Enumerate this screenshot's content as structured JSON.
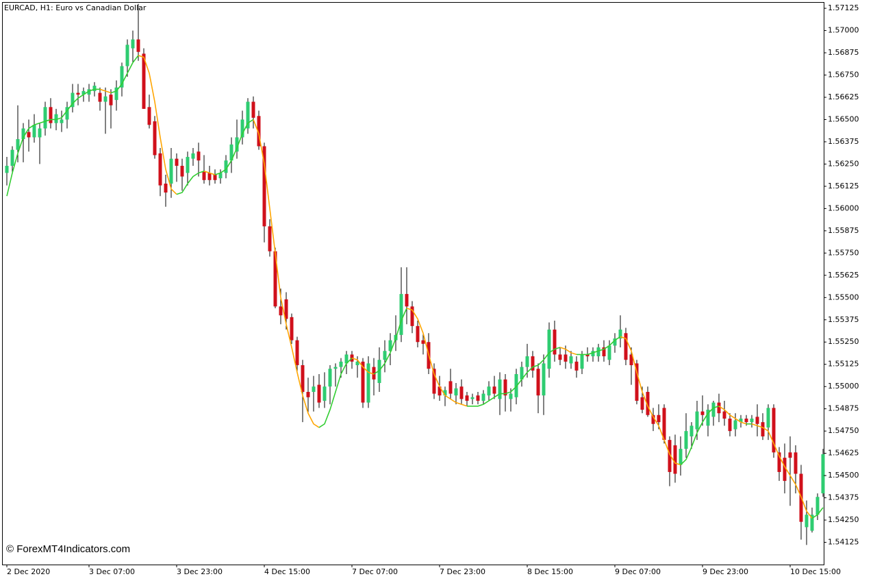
{
  "chart_data": {
    "type": "candlestick",
    "title": "EURCAD, H1:  Euro vs Canadian Dollar",
    "watermark": "© ForexMT4Indicators.com",
    "categories": [
      "2 Dec 2020",
      null,
      null,
      null,
      null,
      null,
      null,
      null,
      null,
      null,
      null,
      null,
      null,
      null,
      null,
      "3 Dec 07:00",
      null,
      null,
      null,
      null,
      null,
      null,
      null,
      null,
      null,
      null,
      null,
      null,
      null,
      null,
      null,
      "3 Dec 23:00",
      null,
      null,
      null,
      null,
      null,
      null,
      null,
      null,
      null,
      null,
      null,
      null,
      null,
      null,
      null,
      "4 Dec 15:00",
      null,
      null,
      null,
      null,
      null,
      null,
      null,
      null,
      null,
      null,
      null,
      null,
      null,
      null,
      null,
      "7 Dec 07:00",
      null,
      null,
      null,
      null,
      null,
      null,
      null,
      null,
      null,
      null,
      null,
      null,
      null,
      null,
      null,
      "7 Dec 23:00",
      null,
      null,
      null,
      null,
      null,
      null,
      null,
      null,
      null,
      null,
      null,
      null,
      null,
      null,
      null,
      "8 Dec 15:00",
      null,
      null,
      null,
      null,
      null,
      null,
      null,
      null,
      null,
      null,
      null,
      null,
      null,
      null,
      null,
      "9 Dec 07:00",
      null,
      null,
      null,
      null,
      null,
      null,
      null,
      null,
      null,
      null,
      null,
      null,
      null,
      null,
      null,
      "9 Dec 23:00",
      null,
      null,
      null,
      null,
      null,
      null,
      null,
      null,
      null,
      null,
      null,
      null,
      null,
      null,
      null,
      "10 Dec 15:00",
      null,
      null,
      null,
      null,
      null,
      null
    ],
    "open": [
      1.562,
      1.5624,
      1.5633,
      1.5639,
      1.5643,
      1.564,
      1.564,
      1.5645,
      1.5657,
      1.5648,
      1.5648,
      1.565,
      1.5657,
      1.5665,
      1.5664,
      1.5664,
      1.5666,
      1.5665,
      1.566,
      1.5664,
      1.5661,
      1.5668,
      1.568,
      1.569,
      1.5695,
      1.5687,
      1.5657,
      1.5649,
      1.5631,
      1.5614,
      1.5614,
      1.5628,
      1.5624,
      1.562,
      1.5628,
      1.5632,
      1.5621,
      1.562,
      1.5619,
      1.5617,
      1.562,
      1.5627,
      1.5632,
      1.564,
      1.5645,
      1.566,
      1.5652,
      1.5635,
      1.559,
      1.5576,
      1.5545,
      1.5549,
      1.5539,
      1.5526,
      1.5512,
      1.5497,
      1.5497,
      1.5501,
      1.5492,
      1.55,
      1.551,
      1.5511,
      1.5513,
      1.5518,
      1.5512,
      1.5514,
      1.5491,
      1.5511,
      1.5502,
      1.5515,
      1.552,
      1.5526,
      1.5529,
      1.5552,
      1.5545,
      1.5534,
      1.5526,
      1.5525,
      1.551,
      1.55,
      1.5495,
      1.5503,
      1.5495,
      1.55,
      1.5495,
      1.5493,
      1.5495,
      1.5492,
      1.5495,
      1.55,
      1.5493,
      1.5504,
      1.5493,
      1.5494,
      1.5504,
      1.5511,
      1.5517,
      1.551,
      1.5495,
      1.551,
      1.5532,
      1.5518,
      1.5518,
      1.5513,
      1.5514,
      1.551,
      1.5518,
      1.5517,
      1.5517,
      1.5522,
      1.5515,
      1.5523,
      1.5527,
      1.553,
      1.5518,
      1.5513,
      1.5494,
      1.5497,
      1.5484,
      1.5484,
      1.5488,
      1.547,
      1.5467,
      1.5456,
      1.5465,
      1.5472,
      1.5476,
      1.5486,
      1.5478,
      1.5483,
      1.5491,
      1.5486,
      1.5482,
      1.5476,
      1.548,
      1.5482,
      1.548,
      1.5483,
      1.548,
      1.5477,
      1.5488,
      1.5463,
      1.546,
      1.5463,
      1.5463,
      1.5451,
      1.5421,
      1.5419,
      1.5428,
      1.544
    ],
    "high": [
      1.5629,
      1.5635,
      1.5658,
      1.5648,
      1.565,
      1.5653,
      1.5648,
      1.566,
      1.5662,
      1.5656,
      1.5655,
      1.566,
      1.567,
      1.567,
      1.5668,
      1.567,
      1.5671,
      1.5668,
      1.5668,
      1.5667,
      1.5672,
      1.5682,
      1.5695,
      1.57,
      1.5715,
      1.569,
      1.5664,
      1.5652,
      1.5634,
      1.5619,
      1.5634,
      1.5631,
      1.5628,
      1.5632,
      1.5634,
      1.5637,
      1.563,
      1.5624,
      1.5622,
      1.5622,
      1.563,
      1.564,
      1.565,
      1.5655,
      1.5662,
      1.5663,
      1.5655,
      1.5637,
      1.5594,
      1.5578,
      1.5555,
      1.5553,
      1.5541,
      1.5528,
      1.5515,
      1.5505,
      1.5506,
      1.5507,
      1.5508,
      1.5512,
      1.5513,
      1.5516,
      1.552,
      1.552,
      1.5517,
      1.5516,
      1.5517,
      1.5516,
      1.5522,
      1.5526,
      1.553,
      1.554,
      1.5567,
      1.5567,
      1.5548,
      1.5537,
      1.553,
      1.553,
      1.5513,
      1.5506,
      1.55,
      1.551,
      1.5502,
      1.5504,
      1.5497,
      1.5496,
      1.5497,
      1.5498,
      1.5503,
      1.5506,
      1.5508,
      1.5507,
      1.5499,
      1.551,
      1.5514,
      1.5524,
      1.552,
      1.5513,
      1.5518,
      1.5536,
      1.5537,
      1.5522,
      1.5523,
      1.552,
      1.5517,
      1.552,
      1.5522,
      1.5522,
      1.5524,
      1.5526,
      1.5526,
      1.553,
      1.554,
      1.5533,
      1.5522,
      1.5515,
      1.55,
      1.55,
      1.5488,
      1.549,
      1.549,
      1.5472,
      1.5473,
      1.5472,
      1.5485,
      1.548,
      1.5492,
      1.5495,
      1.549,
      1.5492,
      1.5496,
      1.5492,
      1.5485,
      1.5485,
      1.5484,
      1.5484,
      1.5484,
      1.549,
      1.5485,
      1.549,
      1.549,
      1.5466,
      1.5468,
      1.5472,
      1.5467,
      1.5456,
      1.5436,
      1.5432,
      1.544,
      1.5465
    ],
    "low": [
      1.5613,
      1.562,
      1.5626,
      1.5626,
      1.5632,
      1.5637,
      1.5625,
      1.5641,
      1.5645,
      1.5644,
      1.5643,
      1.5645,
      1.5654,
      1.5658,
      1.566,
      1.566,
      1.5663,
      1.5655,
      1.5642,
      1.5645,
      1.5655,
      1.5663,
      1.5674,
      1.5682,
      1.5683,
      1.5656,
      1.5645,
      1.5628,
      1.5607,
      1.5601,
      1.5606,
      1.5615,
      1.561,
      1.5613,
      1.5624,
      1.5618,
      1.5614,
      1.5613,
      1.5614,
      1.5614,
      1.5617,
      1.562,
      1.5628,
      1.5636,
      1.5642,
      1.5645,
      1.5633,
      1.5581,
      1.5573,
      1.5544,
      1.5535,
      1.5532,
      1.5524,
      1.5508,
      1.548,
      1.5485,
      1.5486,
      1.5488,
      1.5488,
      1.549,
      1.55,
      1.5505,
      1.5507,
      1.551,
      1.5505,
      1.5488,
      1.5488,
      1.5495,
      1.5497,
      1.5508,
      1.5512,
      1.552,
      1.5525,
      1.5535,
      1.553,
      1.5522,
      1.5518,
      1.5507,
      1.5493,
      1.5492,
      1.5489,
      1.5493,
      1.549,
      1.549,
      1.5489,
      1.549,
      1.549,
      1.549,
      1.5492,
      1.5493,
      1.5484,
      1.5486,
      1.5486,
      1.549,
      1.55,
      1.5505,
      1.5505,
      1.5485,
      1.5484,
      1.5505,
      1.5514,
      1.5512,
      1.551,
      1.551,
      1.5505,
      1.5507,
      1.5514,
      1.5514,
      1.5514,
      1.5514,
      1.5512,
      1.5519,
      1.5522,
      1.5512,
      1.5501,
      1.549,
      1.5485,
      1.5483,
      1.5475,
      1.5476,
      1.5468,
      1.5444,
      1.5446,
      1.545,
      1.546,
      1.5465,
      1.547,
      1.5478,
      1.5472,
      1.5478,
      1.548,
      1.5478,
      1.5472,
      1.5472,
      1.5477,
      1.5478,
      1.5477,
      1.5472,
      1.547,
      1.547,
      1.546,
      1.5447,
      1.544,
      1.5433,
      1.544,
      1.5414,
      1.5411,
      1.5418,
      1.5425,
      1.5438
    ],
    "close": [
      1.5624,
      1.5633,
      1.5639,
      1.5645,
      1.564,
      1.5647,
      1.5645,
      1.5657,
      1.5648,
      1.5653,
      1.565,
      1.5657,
      1.5665,
      1.5664,
      1.5666,
      1.5667,
      1.5669,
      1.566,
      1.5663,
      1.5658,
      1.5668,
      1.568,
      1.5692,
      1.5695,
      1.5688,
      1.5656,
      1.5647,
      1.563,
      1.5613,
      1.5609,
      1.5628,
      1.5624,
      1.5618,
      1.5629,
      1.5631,
      1.5627,
      1.5616,
      1.5616,
      1.5616,
      1.562,
      1.5627,
      1.5636,
      1.564,
      1.565,
      1.566,
      1.5651,
      1.5635,
      1.559,
      1.5576,
      1.5545,
      1.554,
      1.5538,
      1.5526,
      1.5512,
      1.5497,
      1.5494,
      1.55,
      1.5491,
      1.55,
      1.551,
      1.5511,
      1.5514,
      1.5518,
      1.5514,
      1.5514,
      1.5491,
      1.5513,
      1.5504,
      1.5515,
      1.552,
      1.5526,
      1.5529,
      1.5552,
      1.5545,
      1.5534,
      1.5525,
      1.5524,
      1.551,
      1.5496,
      1.5495,
      1.5498,
      1.5496,
      1.5499,
      1.5493,
      1.5492,
      1.5494,
      1.5492,
      1.5496,
      1.55,
      1.5496,
      1.5504,
      1.5495,
      1.5496,
      1.5507,
      1.5511,
      1.5517,
      1.5509,
      1.5495,
      1.5513,
      1.5532,
      1.5518,
      1.5515,
      1.5514,
      1.5517,
      1.5509,
      1.5518,
      1.5517,
      1.552,
      1.5522,
      1.5517,
      1.5523,
      1.5527,
      1.5532,
      1.5515,
      1.5512,
      1.5492,
      1.5487,
      1.5484,
      1.5479,
      1.548,
      1.547,
      1.5452,
      1.5451,
      1.5465,
      1.5475,
      1.5478,
      1.5486,
      1.5484,
      1.5487,
      1.5491,
      1.5485,
      1.5482,
      1.5475,
      1.5481,
      1.5482,
      1.548,
      1.5482,
      1.5479,
      1.5472,
      1.5488,
      1.5463,
      1.5452,
      1.5447,
      1.546,
      1.5451,
      1.5424,
      1.5428,
      1.5428,
      1.5438,
      1.5462
    ],
    "up_color": "#2ecc71",
    "down_color": "#d0101b",
    "wick_color": "#000000",
    "line": {
      "up_color": "#32cd32",
      "down_color": "#ffa500",
      "values": [
        1.5607,
        1.562,
        1.5631,
        1.564,
        1.5645,
        1.5647,
        1.5648,
        1.5649,
        1.565,
        1.565,
        1.5651,
        1.5655,
        1.5659,
        1.5662,
        1.5664,
        1.5666,
        1.5667,
        1.5667,
        1.5666,
        1.5665,
        1.5666,
        1.567,
        1.5676,
        1.5682,
        1.5686,
        1.5685,
        1.5676,
        1.566,
        1.564,
        1.5622,
        1.5611,
        1.5608,
        1.5609,
        1.5614,
        1.5618,
        1.562,
        1.5621,
        1.562,
        1.5619,
        1.562,
        1.5622,
        1.5627,
        1.5634,
        1.5642,
        1.5648,
        1.565,
        1.5642,
        1.5625,
        1.56,
        1.5575,
        1.555,
        1.5535,
        1.5522,
        1.5508,
        1.5495,
        1.5485,
        1.5479,
        1.5477,
        1.5479,
        1.5487,
        1.5497,
        1.5507,
        1.5513,
        1.5516,
        1.5515,
        1.5511,
        1.5508,
        1.5507,
        1.5509,
        1.5513,
        1.5519,
        1.5527,
        1.5537,
        1.5544,
        1.5543,
        1.5538,
        1.553,
        1.5518,
        1.5507,
        1.55,
        1.5495,
        1.5493,
        1.5491,
        1.549,
        1.5489,
        1.5489,
        1.5489,
        1.549,
        1.5492,
        1.5494,
        1.5496,
        1.5496,
        1.5497,
        1.55,
        1.5504,
        1.5508,
        1.5511,
        1.5512,
        1.5515,
        1.5519,
        1.5521,
        1.5522,
        1.5521,
        1.5519,
        1.5518,
        1.5518,
        1.5518,
        1.5519,
        1.552,
        1.5521,
        1.5523,
        1.5526,
        1.5528,
        1.5527,
        1.552,
        1.5508,
        1.5497,
        1.5489,
        1.5483,
        1.5478,
        1.547,
        1.5462,
        1.5457,
        1.5456,
        1.5459,
        1.5466,
        1.5474,
        1.548,
        1.5485,
        1.5488,
        1.5489,
        1.5487,
        1.5484,
        1.5482,
        1.548,
        1.5479,
        1.5479,
        1.5478,
        1.5477,
        1.5475,
        1.5468,
        1.5461,
        1.5455,
        1.545,
        1.5445,
        1.5438,
        1.543,
        1.5426,
        1.5428,
        1.5432
      ]
    },
    "ylim": [
      1.54,
      1.5716
    ],
    "yticks": [
      1.57125,
      {
        "value": 1.57,
        "label": "1.57000"
      },
      1.56875,
      {
        "value": 1.5675,
        "label": "1.56750"
      },
      1.56625,
      {
        "value": 1.565,
        "label": "1.56500"
      },
      1.56375,
      {
        "value": 1.5625,
        "label": "1.56250"
      },
      1.56125,
      {
        "value": 1.56,
        "label": "1.56000"
      },
      1.55875,
      {
        "value": 1.5575,
        "label": "1.55750"
      },
      1.55625,
      {
        "value": 1.555,
        "label": "1.55500"
      },
      1.55375,
      {
        "value": 1.5525,
        "label": "1.55250"
      },
      1.55125,
      {
        "value": 1.55,
        "label": "1.55000"
      },
      1.54875,
      {
        "value": 1.5475,
        "label": "1.54750"
      },
      1.54625,
      {
        "value": 1.545,
        "label": "1.54500"
      },
      1.54375,
      {
        "value": 1.5425,
        "label": "1.54250"
      },
      1.54125
    ]
  }
}
